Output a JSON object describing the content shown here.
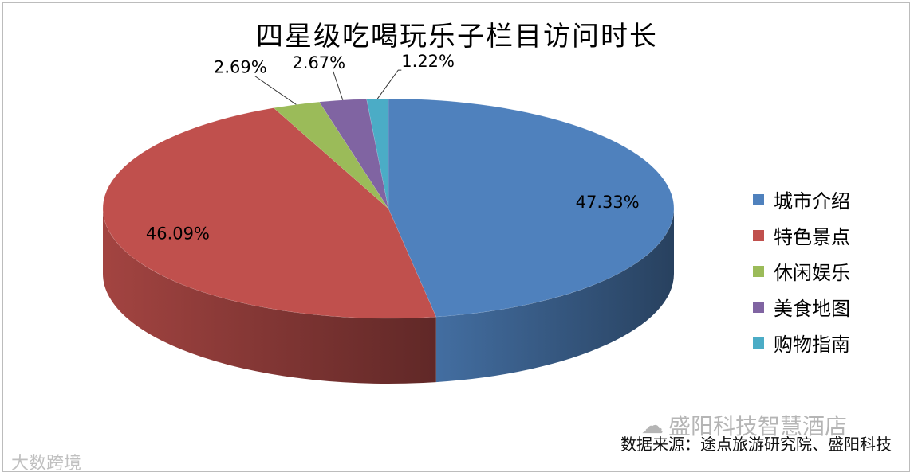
{
  "chart_data": {
    "type": "pie",
    "title": "四星级吃喝玩乐子栏目访问时长",
    "categories": [
      "城市介绍",
      "特色景点",
      "休闲娱乐",
      "美食地图",
      "购物指南"
    ],
    "values": [
      47.33,
      46.09,
      2.69,
      2.67,
      1.22
    ],
    "value_labels": [
      "47.33%",
      "46.09%",
      "2.69%",
      "2.67%",
      "1.22%"
    ],
    "colors": [
      "#4f81bd",
      "#c0504d",
      "#9bbb59",
      "#8064a2",
      "#4bacc6"
    ],
    "legend_position": "right",
    "style": "3d-tilted"
  },
  "source": "数据来源：途点旅游研究院、盛阳科技",
  "watermark": {
    "account": "盛阳科技智慧酒店",
    "logo": "大数跨境"
  }
}
